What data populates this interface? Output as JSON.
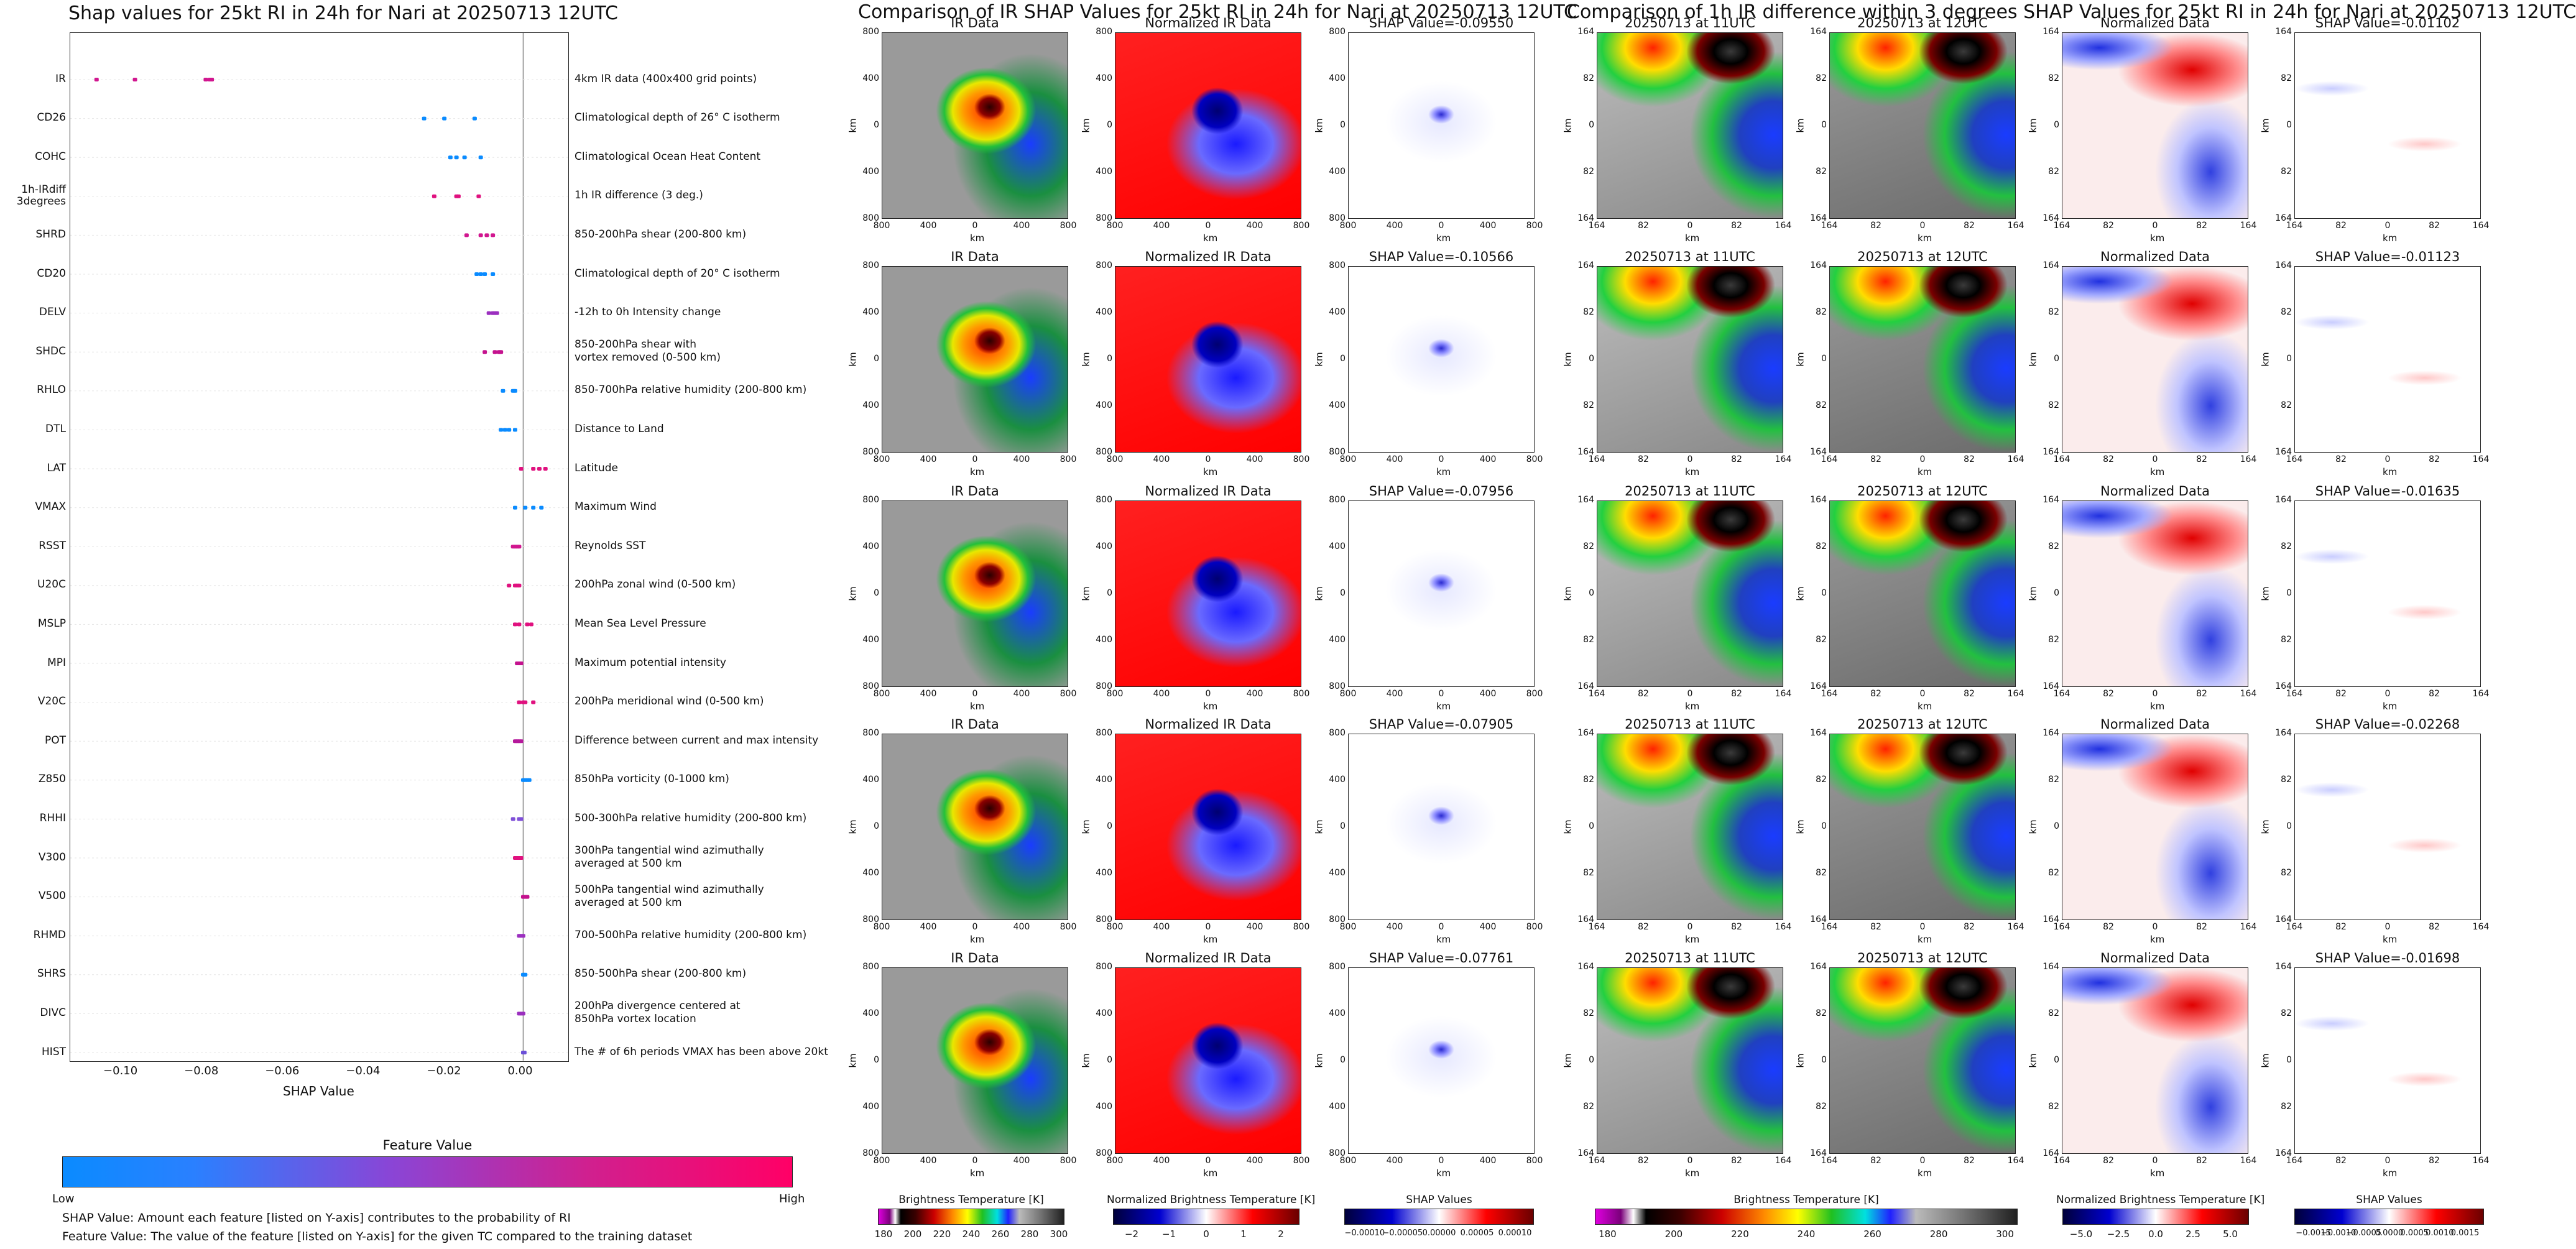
{
  "chart_data": [
    {
      "type": "scatter",
      "title": "Shap values for 25kt RI in 24h for Nari at 20250713 12UTC",
      "xlabel": "SHAP Value",
      "xlim": [
        -0.112,
        0.011
      ],
      "xticks": [
        "−0.10",
        "−0.08",
        "−0.06",
        "−0.04",
        "−0.02",
        "0.00"
      ],
      "features": [
        {
          "code": "IR",
          "desc": "4km IR data (400x400 grid points)",
          "points": [
            -0.1055,
            -0.096,
            -0.0785,
            -0.0775,
            -0.077
          ],
          "color": "#d1168f"
        },
        {
          "code": "CD26",
          "desc": "Climatological depth of 26° C isotherm",
          "points": [
            -0.0245,
            -0.0195,
            -0.012
          ],
          "color": "#0a8bff"
        },
        {
          "code": "COHC",
          "desc": "Climatological Ocean Heat Content",
          "points": [
            -0.018,
            -0.0165,
            -0.0145,
            -0.0105
          ],
          "color": "#0a8bff"
        },
        {
          "code": "1h-IRdiff\n3degrees",
          "desc": "1h IR difference (3 deg.)",
          "points": [
            -0.022,
            -0.0165,
            -0.016,
            -0.011
          ],
          "color": "#e0117f"
        },
        {
          "code": "SHRD",
          "desc": "850-200hPa shear (200-800 km)",
          "points": [
            -0.014,
            -0.0105,
            -0.009,
            -0.0075
          ],
          "color": "#d1168f"
        },
        {
          "code": "CD20",
          "desc": "Climatological depth of 20° C isotherm",
          "points": [
            -0.0115,
            -0.0105,
            -0.0095,
            -0.0075
          ],
          "color": "#0a8bff"
        },
        {
          "code": "DELV",
          "desc": "-12h to 0h Intensity change",
          "points": [
            -0.0085,
            -0.0075,
            -0.007,
            -0.0065
          ],
          "color": "#9b2fbf"
        },
        {
          "code": "SHDC",
          "desc": "850-200hPa shear with\nvortex removed (0-500 km)",
          "points": [
            -0.0095,
            -0.007,
            -0.006,
            -0.0055
          ],
          "color": "#c4128e"
        },
        {
          "code": "RHLO",
          "desc": "850-700hPa relative humidity (200-800 km)",
          "points": [
            -0.005,
            -0.0025,
            -0.002
          ],
          "color": "#0a8bff"
        },
        {
          "code": "DTL",
          "desc": "Distance to Land",
          "points": [
            -0.0055,
            -0.0045,
            -0.0035,
            -0.002
          ],
          "color": "#0a8bff"
        },
        {
          "code": "LAT",
          "desc": "Latitude",
          "points": [
            -0.0005,
            0.0025,
            0.004,
            0.0055
          ],
          "color": "#e0117f"
        },
        {
          "code": "VMAX",
          "desc": "Maximum Wind",
          "points": [
            -0.002,
            0.0005,
            0.0025,
            0.0045
          ],
          "color": "#0a8bff"
        },
        {
          "code": "RSST",
          "desc": "Reynolds SST",
          "points": [
            -0.0025,
            -0.002,
            -0.0015,
            -0.001
          ],
          "color": "#d1168f"
        },
        {
          "code": "U20C",
          "desc": "200hPa zonal wind (0-500 km)",
          "points": [
            -0.0035,
            -0.002,
            -0.0015,
            -0.001
          ],
          "color": "#e0117f"
        },
        {
          "code": "MSLP",
          "desc": "Mean Sea Level Pressure",
          "points": [
            -0.002,
            -0.001,
            0.001,
            0.002
          ],
          "color": "#e0117f"
        },
        {
          "code": "MPI",
          "desc": "Maximum potential intensity",
          "points": [
            -0.0015,
            -0.001,
            -0.0005
          ],
          "color": "#c4128e"
        },
        {
          "code": "V20C",
          "desc": "200hPa meridional wind (0-500 km)",
          "points": [
            -0.001,
            0.0,
            0.0005,
            0.0025
          ],
          "color": "#e0117f"
        },
        {
          "code": "POT",
          "desc": "Difference between current and max intensity",
          "points": [
            -0.002,
            -0.0015,
            -0.001,
            -0.0005
          ],
          "color": "#b5189b"
        },
        {
          "code": "Z850",
          "desc": "850hPa vorticity (0-1000 km)",
          "points": [
            0.0,
            0.0005,
            0.001,
            0.0015
          ],
          "color": "#0a8bff"
        },
        {
          "code": "RHHI",
          "desc": "500-300hPa relative humidity (200-800 km)",
          "points": [
            -0.0025,
            -0.001,
            -0.0005
          ],
          "color": "#7f4fd8"
        },
        {
          "code": "V300",
          "desc": "300hPa tangential wind azimuthally\naveraged at 500 km",
          "points": [
            -0.002,
            -0.0015,
            -0.001,
            -0.0005
          ],
          "color": "#e0117f"
        },
        {
          "code": "V500",
          "desc": "500hPa tangential wind azimuthally\naveraged at 500 km",
          "points": [
            0.0,
            0.0005,
            0.001
          ],
          "color": "#c4128e"
        },
        {
          "code": "RHMD",
          "desc": "700-500hPa relative humidity (200-800 km)",
          "points": [
            -0.001,
            -0.0005,
            0.0
          ],
          "color": "#9b2fbf"
        },
        {
          "code": "SHRS",
          "desc": "850-500hPa shear (200-800 km)",
          "points": [
            0.0,
            0.0005
          ],
          "color": "#0a8bff"
        },
        {
          "code": "DIVC",
          "desc": "200hPa divergence centered at\n850hPa vortex location",
          "points": [
            -0.001,
            -0.0005,
            0.0
          ],
          "color": "#9b2fbf"
        },
        {
          "code": "HIST",
          "desc": "The # of 6h periods VMAX has been above 20kt",
          "points": [
            0.0,
            0.0003
          ],
          "color": "#6b4fd8"
        }
      ],
      "colorbar": {
        "title": "Feature Value",
        "low": "Low",
        "high": "High",
        "colors": [
          "#0a8bff",
          "#8a45d6",
          "#ff0066"
        ]
      },
      "notes": [
        "SHAP Value: Amount each feature [listed on Y-axis] contributes to the probability of RI",
        "Feature Value: The value of the feature [listed on Y-axis] for the given TC compared to the training dataset"
      ]
    },
    {
      "type": "heatmap",
      "title": "Comparison of IR SHAP Values for 25kt RI in 24h for Nari at 20250713 12UTC",
      "column_titles": [
        "IR Data",
        "Normalized IR Data"
      ],
      "shap_values": [
        "SHAP Value=-0.09550",
        "SHAP Value=-0.10566",
        "SHAP Value=-0.07956",
        "SHAP Value=-0.07905",
        "SHAP Value=-0.07761"
      ],
      "axis_ticks": [
        "800",
        "400",
        "0",
        "400",
        "800"
      ],
      "axis_label": "km",
      "colorbars": [
        {
          "title": "Brightness Temperature [K]",
          "ticks": [
            "180",
            "200",
            "220",
            "240",
            "260",
            "280",
            "300"
          ]
        },
        {
          "title": "Normalized Brightness Temperature [K]",
          "ticks": [
            "−2",
            "−1",
            "0",
            "1",
            "2"
          ]
        },
        {
          "title": "SHAP Values",
          "ticks": [
            "−0.00010",
            "−0.00005",
            "0.00000",
            "0.00005",
            "0.00010"
          ]
        }
      ]
    },
    {
      "type": "heatmap",
      "title": "Comparison of 1h IR difference within 3 degrees SHAP Values for 25kt RI in 24h for Nari at 20250713 12UTC",
      "column_titles": [
        "20250713 at 11UTC",
        "20250713 at 12UTC",
        "Normalized Data"
      ],
      "shap_values": [
        "SHAP Value=-0.01102",
        "SHAP Value=-0.01123",
        "SHAP Value=-0.01635",
        "SHAP Value=-0.02268",
        "SHAP Value=-0.01698"
      ],
      "axis_ticks": [
        "164",
        "82",
        "0",
        "82",
        "164"
      ],
      "axis_label": "km",
      "colorbars": [
        {
          "title": "Brightness Temperature [K]",
          "ticks": [
            "180",
            "200",
            "220",
            "240",
            "260",
            "280",
            "300"
          ]
        },
        {
          "title": "Normalized Brightness Temperature [K]",
          "ticks": [
            "−5.0",
            "−2.5",
            "0.0",
            "2.5",
            "5.0"
          ]
        },
        {
          "title": "SHAP Values",
          "ticks": [
            "−0.0015",
            "−0.0010",
            "−0.0005",
            "0.0000",
            "0.0005",
            "0.0010",
            "0.0015"
          ]
        }
      ]
    }
  ]
}
